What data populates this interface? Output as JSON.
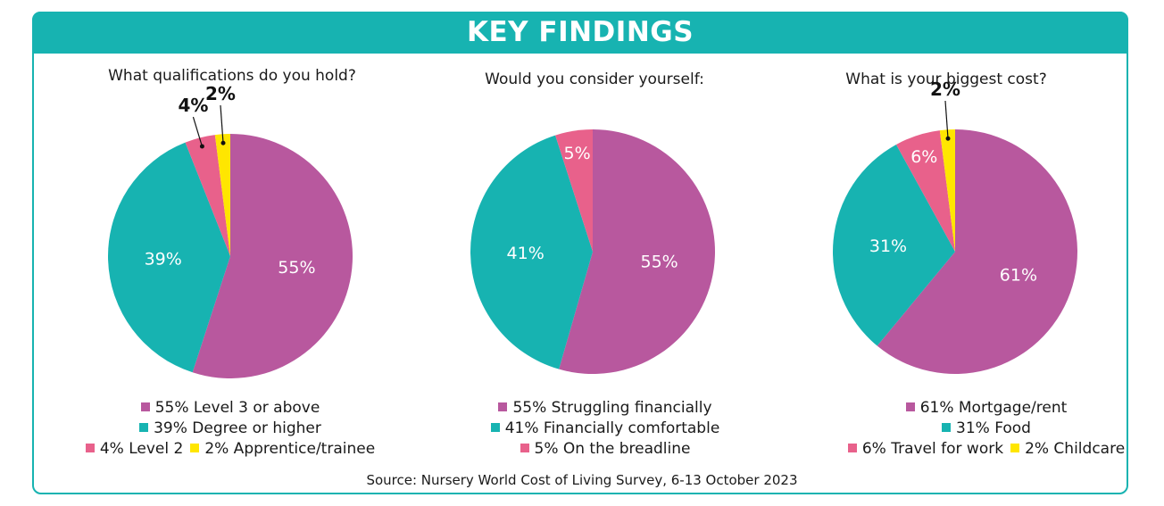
{
  "header": {
    "title": "KEY FINDINGS"
  },
  "source": "Source: Nursery World Cost of Living Survey, 6-13 October 2023",
  "colors": {
    "teal": "#17b3b1",
    "purple": "#b8589e",
    "pink": "#e8618b",
    "yellow": "#ffe600"
  },
  "chart_data": [
    {
      "type": "pie",
      "title": "What qualifications do you hold?",
      "slices": [
        {
          "label": "Level 3 or above",
          "value": 55,
          "color": "#b8589e",
          "display": "55%"
        },
        {
          "label": "Degree or higher",
          "value": 39,
          "color": "#17b3b1",
          "display": "39%"
        },
        {
          "label": "Level 2",
          "value": 4,
          "color": "#e8618b",
          "display": "4%"
        },
        {
          "label": "Apprentice/trainee",
          "value": 2,
          "color": "#ffe600",
          "display": "2%"
        }
      ],
      "legend": [
        [
          {
            "text": "55% Level 3 or above",
            "color": "#b8589e"
          }
        ],
        [
          {
            "text": "39% Degree or higher",
            "color": "#17b3b1"
          }
        ],
        [
          {
            "text": "4% Level 2",
            "color": "#e8618b"
          },
          {
            "text": "2% Apprentice/trainee",
            "color": "#ffe600"
          }
        ]
      ]
    },
    {
      "type": "pie",
      "title": "Would you consider yourself:",
      "slices": [
        {
          "label": "Struggling financially",
          "value": 55,
          "color": "#b8589e",
          "display": "55%"
        },
        {
          "label": "Financially comfortable",
          "value": 41,
          "color": "#17b3b1",
          "display": "41%"
        },
        {
          "label": "On the breadline",
          "value": 5,
          "color": "#e8618b",
          "display": "5%"
        }
      ],
      "legend": [
        [
          {
            "text": "55% Struggling financially",
            "color": "#b8589e"
          }
        ],
        [
          {
            "text": "41% Financially comfortable",
            "color": "#17b3b1"
          }
        ],
        [
          {
            "text": "5% On the breadline",
            "color": "#e8618b"
          }
        ]
      ]
    },
    {
      "type": "pie",
      "title": "What is your biggest cost?",
      "slices": [
        {
          "label": "Mortgage/rent",
          "value": 61,
          "color": "#b8589e",
          "display": "61%"
        },
        {
          "label": "Food",
          "value": 31,
          "color": "#17b3b1",
          "display": "31%"
        },
        {
          "label": "Travel for work",
          "value": 6,
          "color": "#e8618b",
          "display": "6%"
        },
        {
          "label": "Childcare",
          "value": 2,
          "color": "#ffe600",
          "display": "2%"
        }
      ],
      "legend": [
        [
          {
            "text": "61% Mortgage/rent",
            "color": "#b8589e"
          }
        ],
        [
          {
            "text": "31% Food",
            "color": "#17b3b1"
          }
        ],
        [
          {
            "text": "6% Travel for work",
            "color": "#e8618b"
          },
          {
            "text": "2% Childcare",
            "color": "#ffe600"
          }
        ]
      ]
    }
  ]
}
